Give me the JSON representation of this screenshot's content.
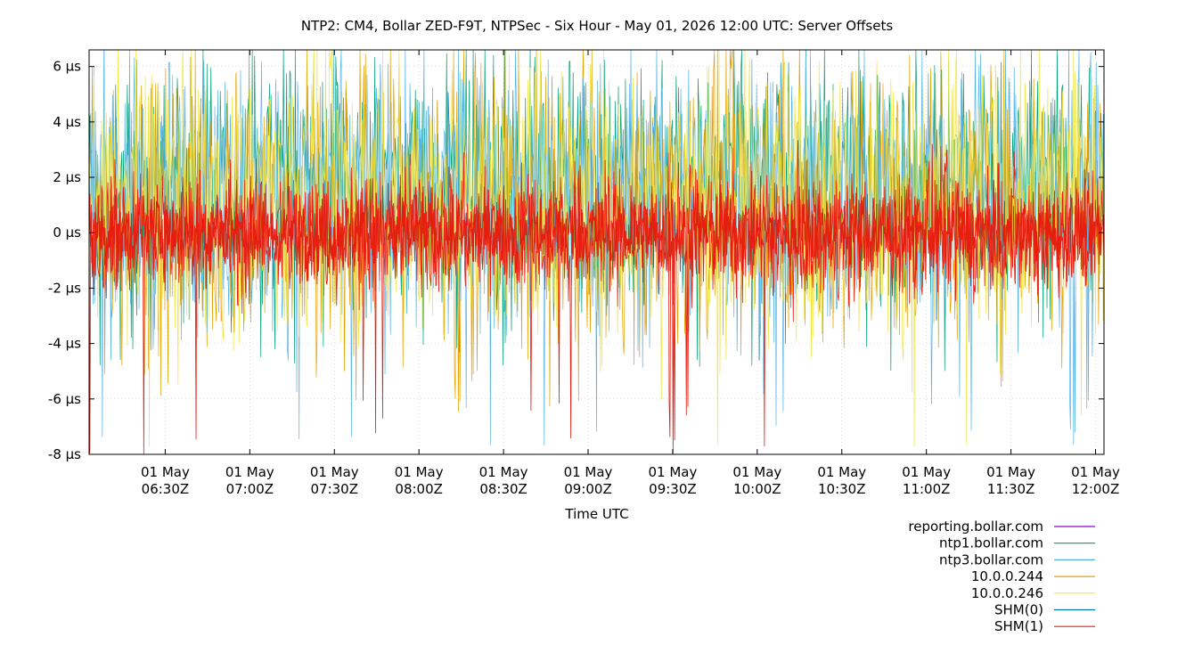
{
  "chart_data": {
    "type": "line",
    "title": "NTP2: CM4, Bollar ZED-F9T, NTPSec - Six Hour - May 01, 2026 12:00 UTC: Server Offsets",
    "xlabel": "Time UTC",
    "ylabel": "",
    "y_unit": "µs",
    "xlim": [
      "2026-05-01T06:03:00Z",
      "2026-05-01T12:03:00Z"
    ],
    "ylim": [
      -8,
      6.6
    ],
    "x_ticks": [
      {
        "date": "01 May",
        "time": "06:30Z",
        "value": "2026-05-01T06:30:00Z"
      },
      {
        "date": "01 May",
        "time": "07:00Z",
        "value": "2026-05-01T07:00:00Z"
      },
      {
        "date": "01 May",
        "time": "07:30Z",
        "value": "2026-05-01T07:30:00Z"
      },
      {
        "date": "01 May",
        "time": "08:00Z",
        "value": "2026-05-01T08:00:00Z"
      },
      {
        "date": "01 May",
        "time": "08:30Z",
        "value": "2026-05-01T08:30:00Z"
      },
      {
        "date": "01 May",
        "time": "09:00Z",
        "value": "2026-05-01T09:00:00Z"
      },
      {
        "date": "01 May",
        "time": "09:30Z",
        "value": "2026-05-01T09:30:00Z"
      },
      {
        "date": "01 May",
        "time": "10:00Z",
        "value": "2026-05-01T10:00:00Z"
      },
      {
        "date": "01 May",
        "time": "10:30Z",
        "value": "2026-05-01T10:30:00Z"
      },
      {
        "date": "01 May",
        "time": "11:00Z",
        "value": "2026-05-01T11:00:00Z"
      },
      {
        "date": "01 May",
        "time": "11:30Z",
        "value": "2026-05-01T11:30:00Z"
      },
      {
        "date": "01 May",
        "time": "12:00Z",
        "value": "2026-05-01T12:00:00Z"
      }
    ],
    "y_ticks": [
      {
        "value": 6,
        "label": "6 µs"
      },
      {
        "value": 4,
        "label": "4 µs"
      },
      {
        "value": 2,
        "label": "2 µs"
      },
      {
        "value": 0,
        "label": "0 µs"
      },
      {
        "value": -2,
        "label": "-2 µs"
      },
      {
        "value": -4,
        "label": "-4 µs"
      },
      {
        "value": -6,
        "label": "-6 µs"
      },
      {
        "value": -8,
        "label": "-8 µs"
      }
    ],
    "grid": true,
    "legend_position": "bottom-right",
    "series": [
      {
        "name": "reporting.bollar.com",
        "color": "#9400d3",
        "typical_offset_us": [
          0,
          0
        ],
        "extreme_min_us": 0
      },
      {
        "name": "ntp1.bollar.com",
        "color": "#009e73",
        "typical_offset_us": [
          -3,
          6.6
        ],
        "extreme_min_us": -5
      },
      {
        "name": "ntp3.bollar.com",
        "color": "#56b4e9",
        "typical_offset_us": [
          -4,
          6.6
        ],
        "extreme_min_us": -7.7
      },
      {
        "name": "10.0.0.244",
        "color": "#e69f00",
        "typical_offset_us": [
          -4.5,
          6.6
        ],
        "extreme_min_us": -6.5
      },
      {
        "name": "10.0.0.246",
        "color": "#f0e442",
        "typical_offset_us": [
          -4,
          6.6
        ],
        "extreme_min_us": -8
      },
      {
        "name": "SHM(0)",
        "color": "#0072b2",
        "typical_offset_us": [
          0,
          0
        ],
        "extreme_min_us": 0
      },
      {
        "name": "SHM(1)",
        "color": "#e51e10",
        "typical_offset_us": [
          -2.5,
          2.5
        ],
        "extreme_min_us": -8
      }
    ]
  }
}
